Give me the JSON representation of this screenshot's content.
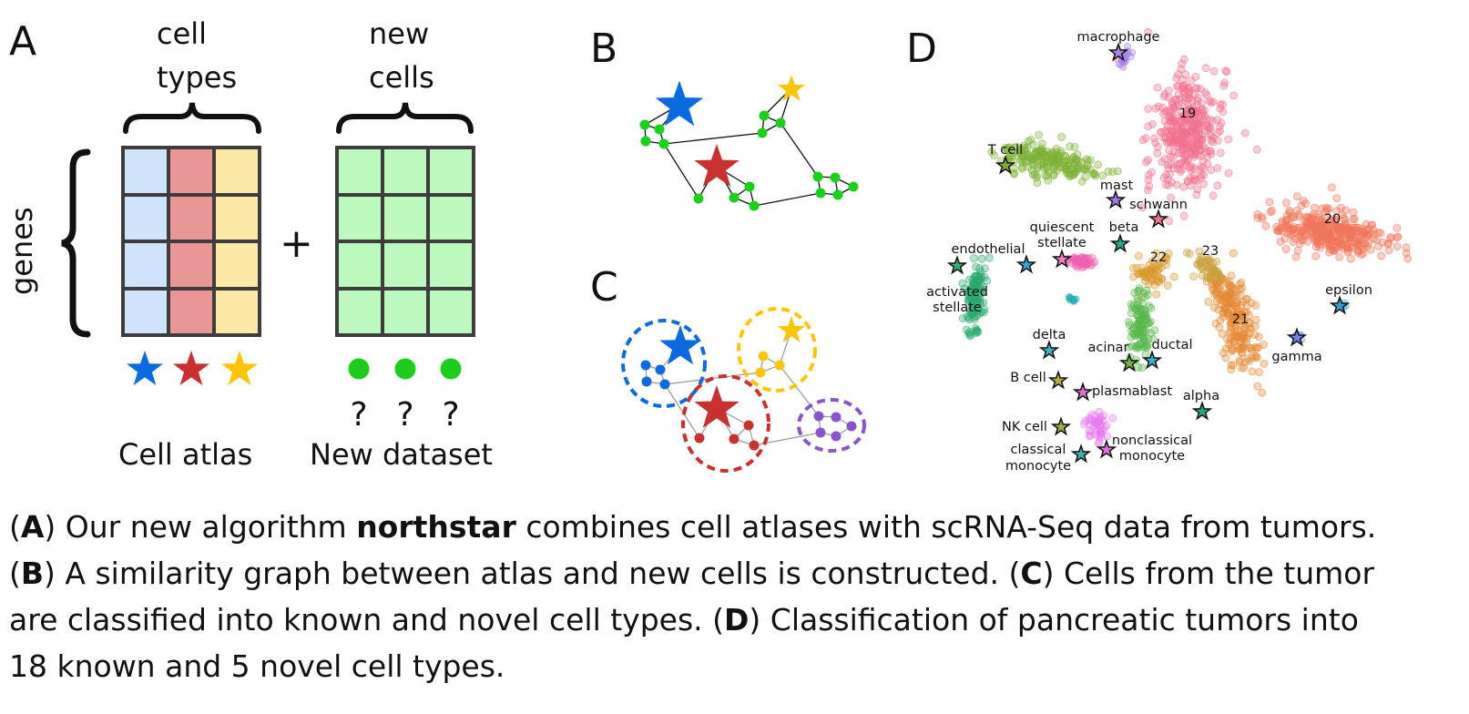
{
  "panel_a": {
    "letter": "A",
    "header_left_1": "cell",
    "header_left_2": "types",
    "header_right_1": "new",
    "header_right_2": "cells",
    "genes_label": "genes",
    "plus": "+",
    "question": "?",
    "label_left": "Cell atlas",
    "label_right": "New dataset",
    "colors": {
      "blue_col": "#cfe3fb",
      "red_col": "#e99697",
      "yellow_col": "#fde9a7",
      "green_cell": "#bdf9bf",
      "grid_line": "#3d3d3d"
    },
    "star_colors": [
      "#0a6be0",
      "#c8312f",
      "#fdc50a"
    ],
    "dot_color": "#1ecc1e"
  },
  "panel_b": {
    "letter": "B",
    "node_color": "#19d119"
  },
  "panel_c": {
    "letter": "C",
    "cluster_colors": [
      "#0a6be0",
      "#c8312f",
      "#fdc50a",
      "#8a55cc"
    ]
  },
  "panel_d": {
    "letter": "D",
    "cluster_colors": {
      "c19": "#f27390",
      "c20": "#f0765a",
      "c21": "#e58a35",
      "c22": "#d8992c",
      "c23": "#c9a13a",
      "tcell": "#7fb236",
      "acinar": "#56b84a",
      "activated": "#2aa86e",
      "quiescent": "#f060b0",
      "macrophage": "#a27ee8",
      "teal": "#1fb0b0",
      "nonclassical": "#e87af0"
    },
    "cluster_labels": {
      "c19": "19",
      "c20": "20",
      "c21": "21",
      "c22": "22",
      "c23": "23"
    },
    "cell_types": {
      "macrophage": "macrophage",
      "tcell": "T cell",
      "mast": "mast",
      "schwann": "schwann",
      "quiescent_1": "quiescent",
      "quiescent_2": "stellate",
      "beta": "beta",
      "endothelial": "endothelial",
      "activated_1": "activated",
      "activated_2": "stellate",
      "epsilon": "epsilon",
      "gamma": "gamma",
      "delta": "delta",
      "acinar": "acinar",
      "ductal": "ductal",
      "bcell": "B cell",
      "plasmablast": "plasmablast",
      "alpha": "alpha",
      "nkcell": "NK cell",
      "classical_1": "classical",
      "classical_2": "monocyte",
      "nonclassical_1": "nonclassical",
      "nonclassical_2": "monocyte"
    }
  },
  "caption": {
    "p1_a": "A",
    "p1_text1": " Our new algorithm ",
    "p1_bold": "northstar",
    "p1_text2": " combines cell atlases with scRNA-Seq data from tumors.",
    "p2_b": "B",
    "p2_text1": " A similarity graph between atlas and new cells is constructed. (",
    "p2_c": "C",
    "p2_text2": ") Cells from the tumor",
    "p3_text1": "are classified into known and novel cell types. (",
    "p3_d": "D",
    "p3_text2": ") Classification of pancreatic tumors into",
    "p4_text": "18 known and 5 novel cell types."
  }
}
